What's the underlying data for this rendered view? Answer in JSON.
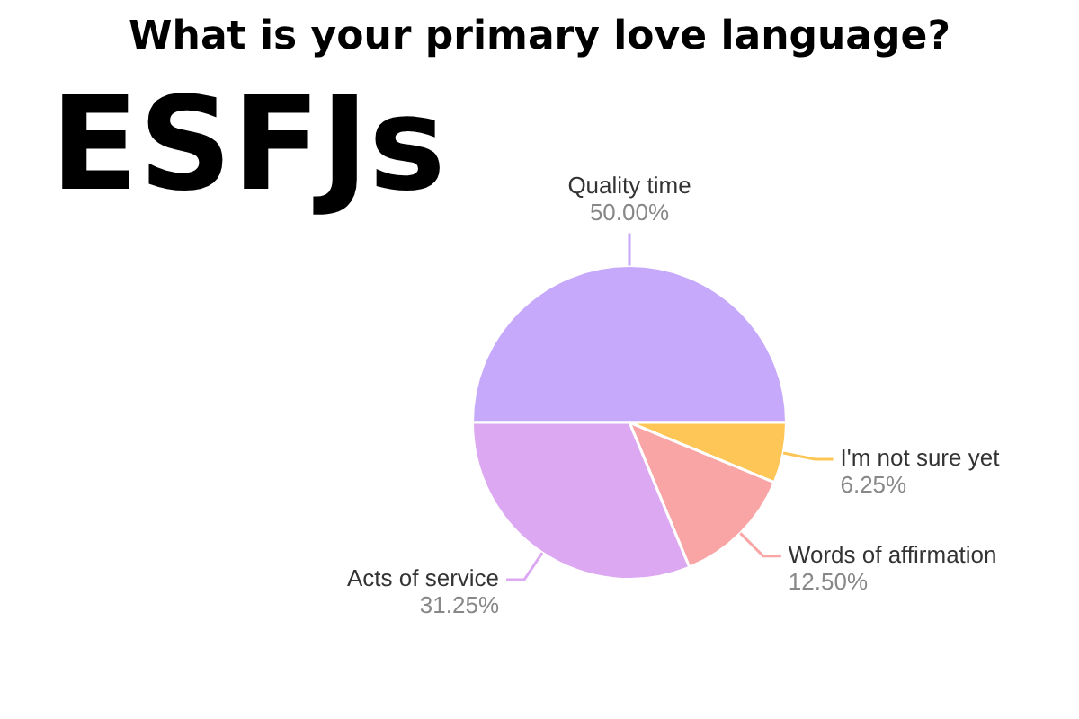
{
  "chart_data": {
    "type": "pie",
    "title": "What is your primary love language?",
    "subtitle": "ESFJs",
    "categories": [
      "Quality time",
      "I'm not sure yet",
      "Words of affirmation",
      "Acts of service"
    ],
    "values": [
      50,
      6.25,
      12.5,
      31.25
    ],
    "value_labels": [
      "50.00%",
      "6.25%",
      "12.50%",
      "31.25%"
    ],
    "colors": [
      "#c6a9fb",
      "#fdc656",
      "#f9a5a5",
      "#dca8f2"
    ],
    "legend": false
  }
}
